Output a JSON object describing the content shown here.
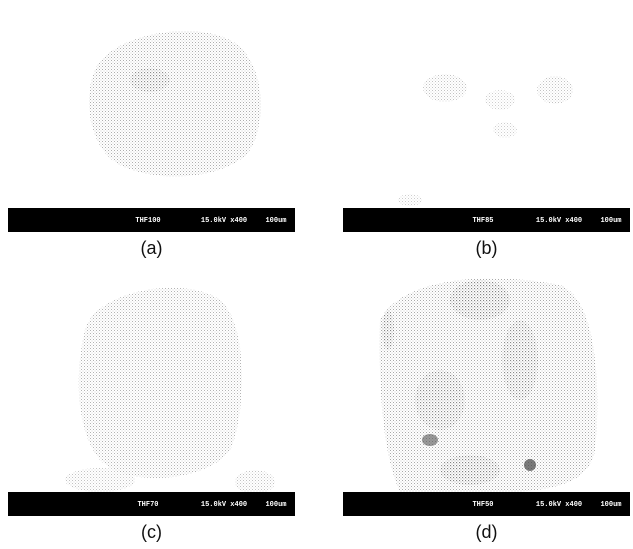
{
  "panels": [
    {
      "caption": "(a)",
      "sample": "THF100",
      "conditions": "15.0kV x400",
      "scale": "100um"
    },
    {
      "caption": "(b)",
      "sample": "THF85",
      "conditions": "15.0kV x400",
      "scale": "100um"
    },
    {
      "caption": "(c)",
      "sample": "THF70",
      "conditions": "15.0kV x400",
      "scale": "100um"
    },
    {
      "caption": "(d)",
      "sample": "THF50",
      "conditions": "15.0kV x400",
      "scale": "100um"
    }
  ]
}
